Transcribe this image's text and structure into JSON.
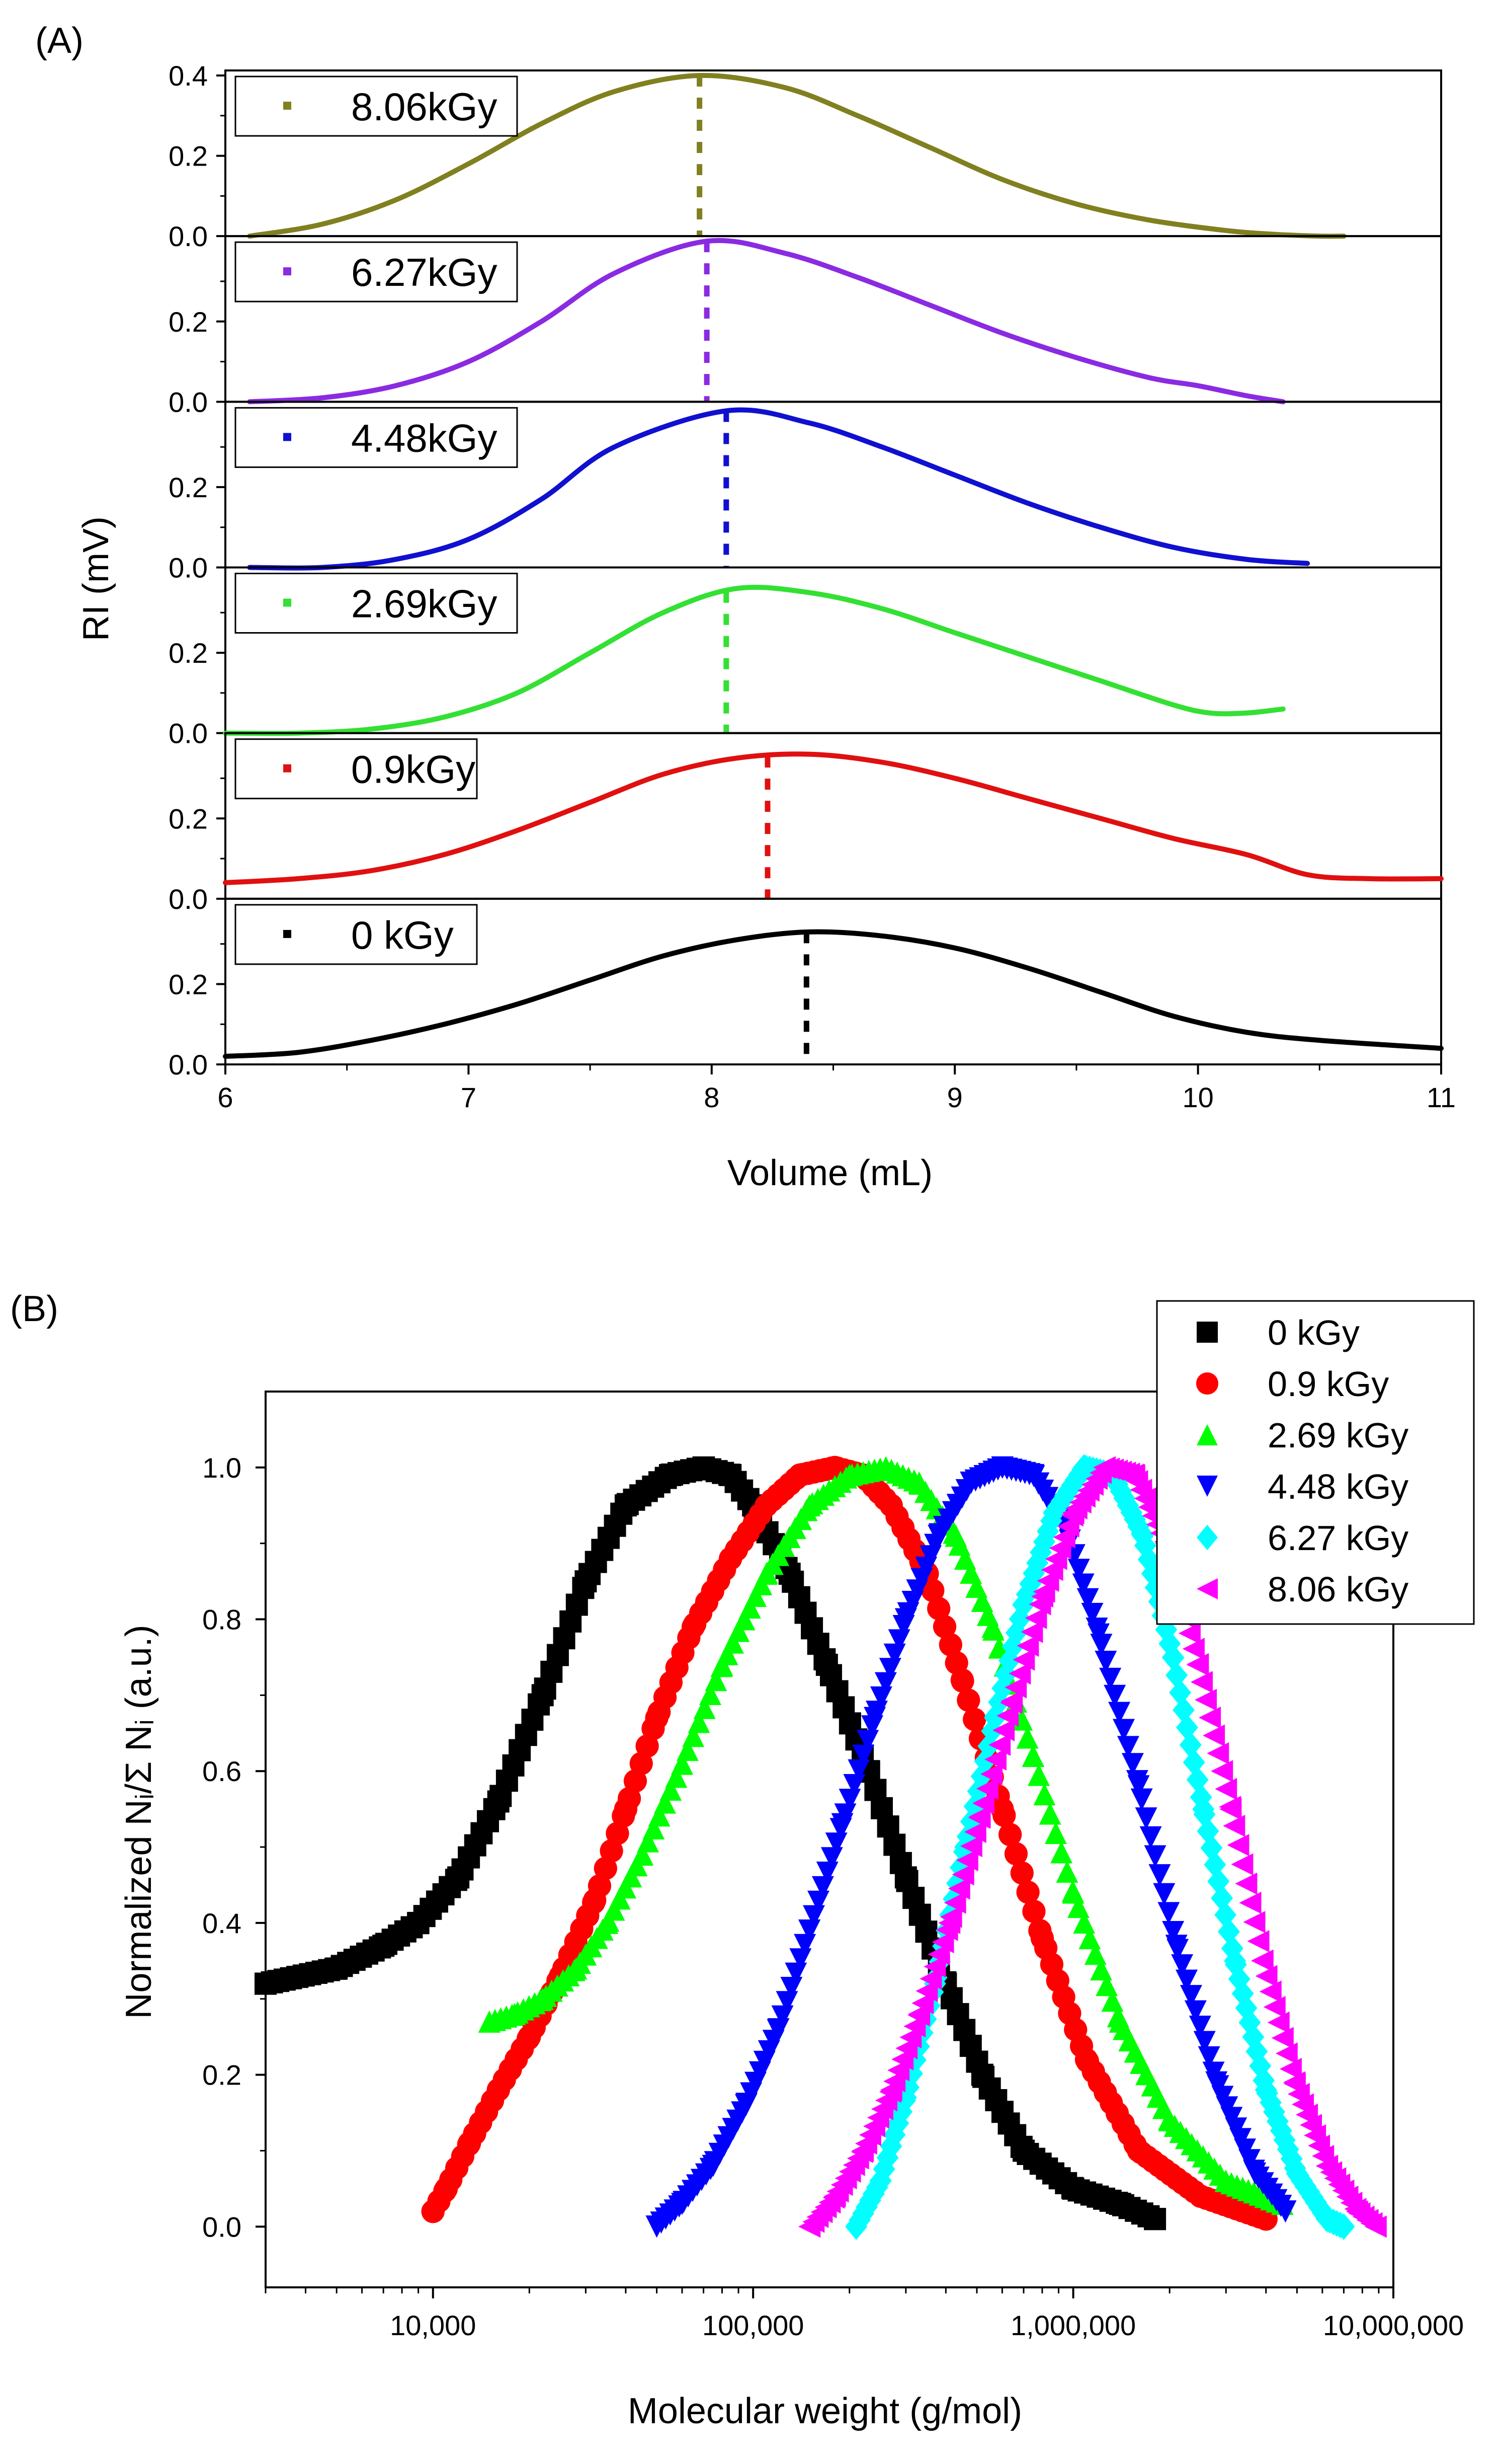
{
  "chart_data": [
    {
      "type": "line",
      "panel_label": "(A)",
      "title": "",
      "xlabel": "Volume (mL)",
      "ylabel": "RI (mV)",
      "xlim": [
        6,
        11
      ],
      "x_ticks": [
        "6",
        "7",
        "8",
        "9",
        "10",
        "11"
      ],
      "subplot_ylim": [
        0,
        0.4
      ],
      "y_ticks": [
        "0.0",
        "0.2"
      ],
      "top_y_tick": "0.4",
      "grid": false,
      "legend_position": "top-left of each subplot",
      "series": [
        {
          "name": "8.06kGy",
          "color": "#808020",
          "peak_x": 7.95,
          "x": [
            6.1,
            6.4,
            6.7,
            7.0,
            7.3,
            7.6,
            7.95,
            8.3,
            8.6,
            8.9,
            9.2,
            9.5,
            9.8,
            10.1,
            10.3,
            10.5,
            10.6
          ],
          "y": [
            0.0,
            0.03,
            0.09,
            0.18,
            0.28,
            0.36,
            0.4,
            0.37,
            0.3,
            0.22,
            0.14,
            0.08,
            0.04,
            0.015,
            0.005,
            0.0,
            0.0
          ]
        },
        {
          "name": "6.27kGy",
          "color": "#8a2be2",
          "peak_x": 7.98,
          "x": [
            6.1,
            6.4,
            6.7,
            7.0,
            7.3,
            7.6,
            7.98,
            8.3,
            8.6,
            8.9,
            9.2,
            9.5,
            9.8,
            10.0,
            10.2,
            10.35
          ],
          "y": [
            0.0,
            0.01,
            0.04,
            0.1,
            0.2,
            0.32,
            0.4,
            0.37,
            0.31,
            0.24,
            0.17,
            0.11,
            0.06,
            0.04,
            0.015,
            0.0
          ]
        },
        {
          "name": "4.48kGy",
          "color": "#1010d0",
          "peak_x": 8.06,
          "x": [
            6.1,
            6.4,
            6.7,
            7.0,
            7.3,
            7.6,
            8.06,
            8.4,
            8.7,
            9.0,
            9.3,
            9.6,
            9.9,
            10.2,
            10.45
          ],
          "y": [
            0.0,
            0.0,
            0.02,
            0.07,
            0.17,
            0.3,
            0.39,
            0.36,
            0.3,
            0.23,
            0.16,
            0.1,
            0.05,
            0.02,
            0.01
          ]
        },
        {
          "name": "2.69kGy",
          "color": "#33e033",
          "peak_x": 8.06,
          "x": [
            6.0,
            6.3,
            6.6,
            6.9,
            7.2,
            7.5,
            7.8,
            8.1,
            8.4,
            8.7,
            9.0,
            9.3,
            9.6,
            9.9,
            10.05,
            10.2,
            10.35
          ],
          "y": [
            0.0,
            0.0,
            0.01,
            0.04,
            0.1,
            0.2,
            0.3,
            0.36,
            0.35,
            0.31,
            0.25,
            0.19,
            0.13,
            0.07,
            0.05,
            0.05,
            0.06
          ]
        },
        {
          "name": "0.9kGy",
          "color": "#e01010",
          "peak_x": 8.23,
          "x": [
            6.0,
            6.3,
            6.6,
            6.9,
            7.2,
            7.5,
            7.8,
            8.1,
            8.4,
            8.7,
            9.0,
            9.3,
            9.6,
            9.9,
            10.2,
            10.45,
            10.7,
            11.0
          ],
          "y": [
            0.04,
            0.05,
            0.07,
            0.11,
            0.17,
            0.24,
            0.31,
            0.35,
            0.36,
            0.34,
            0.3,
            0.25,
            0.2,
            0.15,
            0.11,
            0.06,
            0.05,
            0.05
          ]
        },
        {
          "name": "0 kGy",
          "color": "#000000",
          "peak_x": 8.39,
          "x": [
            6.0,
            6.3,
            6.6,
            6.9,
            7.2,
            7.5,
            7.8,
            8.1,
            8.4,
            8.7,
            9.0,
            9.3,
            9.6,
            9.9,
            10.2,
            10.5,
            11.0
          ],
          "y": [
            0.02,
            0.03,
            0.06,
            0.1,
            0.15,
            0.21,
            0.27,
            0.31,
            0.33,
            0.32,
            0.29,
            0.24,
            0.18,
            0.12,
            0.08,
            0.06,
            0.04
          ]
        }
      ]
    },
    {
      "type": "scatter",
      "panel_label": "(B)",
      "title": "",
      "xlabel": "Molecular weight (g/mol)",
      "ylabel": "Normalized Nᵢ/Σ Nᵢ (a.u.)",
      "xscale": "log",
      "xlim": [
        3000,
        10000000
      ],
      "ylim": [
        -0.08,
        1.1
      ],
      "x_ticks": [
        10000,
        100000,
        1000000,
        10000000
      ],
      "x_tick_labels": [
        "10,000",
        "100,000",
        "1,000,000",
        "10,000,000"
      ],
      "y_ticks": [
        0.0,
        0.2,
        0.4,
        0.6,
        0.8,
        1.0
      ],
      "y_tick_labels": [
        "0.0",
        "0.2",
        "0.4",
        "0.6",
        "0.8",
        "1.0"
      ],
      "grid": false,
      "legend_position": "top-right",
      "series": [
        {
          "name": "0 kGy",
          "marker": "square",
          "color": "#000000",
          "x": [
            3000,
            5000,
            7000,
            9000,
            12000,
            16000,
            22000,
            30000,
            40000,
            55000,
            70000,
            85000,
            100000,
            130000,
            170000,
            230000,
            300000,
            400000,
            520000,
            700000,
            1000000,
            1400000,
            1800000
          ],
          "y": [
            0.32,
            0.34,
            0.37,
            0.4,
            0.46,
            0.56,
            0.7,
            0.85,
            0.95,
            0.99,
            1.0,
            0.99,
            0.95,
            0.86,
            0.74,
            0.6,
            0.46,
            0.32,
            0.2,
            0.1,
            0.05,
            0.03,
            0.01
          ]
        },
        {
          "name": "0.9 kGy",
          "marker": "circle",
          "color": "#ff0000",
          "x": [
            10000,
            11000,
            13000,
            16000,
            20000,
            25000,
            32000,
            40000,
            50000,
            65000,
            85000,
            110000,
            140000,
            180000,
            220000,
            270000,
            350000,
            450000,
            600000,
            800000,
            1100000,
            1600000,
            2500000,
            4000000
          ],
          "y": [
            0.02,
            0.05,
            0.11,
            0.18,
            0.25,
            0.33,
            0.43,
            0.55,
            0.67,
            0.79,
            0.88,
            0.95,
            0.99,
            1.0,
            0.99,
            0.95,
            0.86,
            0.72,
            0.55,
            0.38,
            0.22,
            0.1,
            0.04,
            0.01
          ]
        },
        {
          "name": "2.69 kGy",
          "marker": "triangle-up",
          "color": "#00ff00",
          "x": [
            15000,
            18000,
            22000,
            28000,
            35000,
            45000,
            60000,
            80000,
            110000,
            150000,
            200000,
            260000,
            330000,
            430000,
            560000,
            750000,
            1000000,
            1400000,
            2000000,
            3000000,
            4500000
          ],
          "y": [
            0.27,
            0.28,
            0.3,
            0.34,
            0.4,
            0.49,
            0.61,
            0.74,
            0.86,
            0.95,
            0.99,
            1.0,
            0.98,
            0.91,
            0.79,
            0.62,
            0.44,
            0.27,
            0.14,
            0.06,
            0.03
          ]
        },
        {
          "name": "4.48 kGy",
          "marker": "triangle-down",
          "color": "#0000ff",
          "x": [
            50000,
            60000,
            75000,
            95000,
            120000,
            150000,
            190000,
            240000,
            300000,
            380000,
            480000,
            600000,
            750000,
            950000,
            1200000,
            1600000,
            2100000,
            2800000,
            3700000,
            4600000
          ],
          "y": [
            0.0,
            0.03,
            0.08,
            0.16,
            0.26,
            0.39,
            0.53,
            0.67,
            0.8,
            0.91,
            0.98,
            1.0,
            0.99,
            0.92,
            0.78,
            0.58,
            0.37,
            0.19,
            0.07,
            0.02
          ]
        },
        {
          "name": "6.27 kGy",
          "marker": "diamond",
          "color": "#00ffff",
          "x": [
            210000,
            250000,
            300000,
            370000,
            460000,
            570000,
            700000,
            870000,
            1080000,
            1330000,
            1650000,
            2050000,
            2550000,
            3200000,
            4000000,
            5000000,
            6200000,
            7000000
          ],
          "y": [
            0.0,
            0.06,
            0.17,
            0.32,
            0.5,
            0.67,
            0.82,
            0.94,
            1.0,
            0.99,
            0.91,
            0.75,
            0.55,
            0.35,
            0.18,
            0.07,
            0.01,
            0.0
          ]
        },
        {
          "name": "8.06 kGy",
          "marker": "triangle-left",
          "color": "#ff00ff",
          "x": [
            150000,
            180000,
            220000,
            270000,
            330000,
            410000,
            510000,
            640000,
            800000,
            1000000,
            1250000,
            1550000,
            1950000,
            2450000,
            3100000,
            3900000,
            4900000,
            6200000,
            7700000,
            8800000
          ],
          "y": [
            0.0,
            0.04,
            0.1,
            0.18,
            0.28,
            0.4,
            0.54,
            0.69,
            0.83,
            0.94,
            1.0,
            0.99,
            0.9,
            0.74,
            0.55,
            0.35,
            0.19,
            0.08,
            0.02,
            0.0
          ]
        }
      ]
    }
  ]
}
